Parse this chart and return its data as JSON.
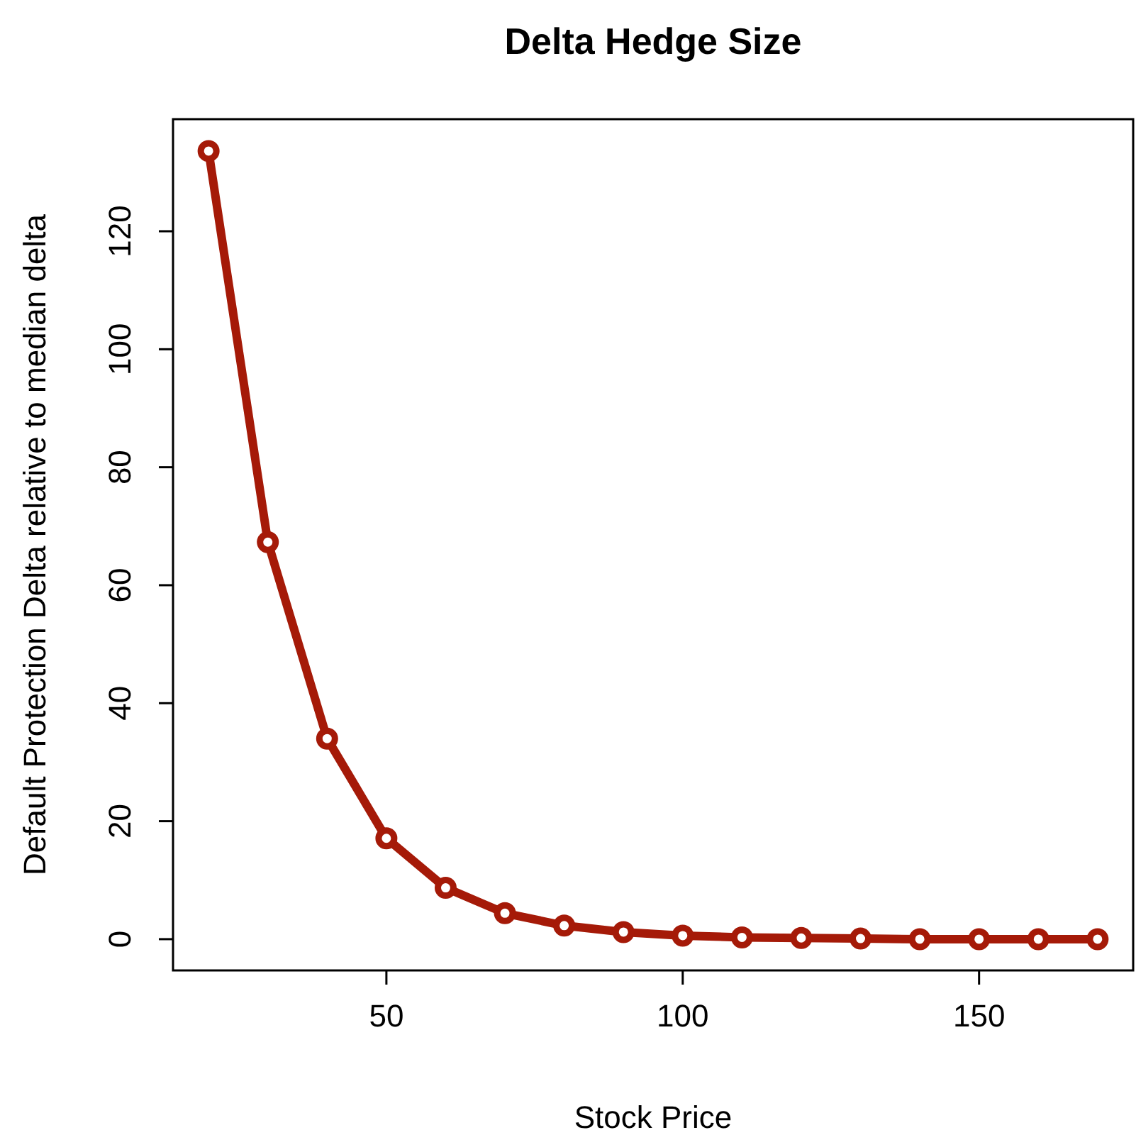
{
  "chart_data": {
    "type": "line",
    "title": "Delta Hedge Size",
    "xlabel": "Stock Price",
    "ylabel": "Default Protection Delta relative to median delta",
    "x": [
      20,
      30,
      40,
      50,
      60,
      70,
      80,
      90,
      100,
      110,
      120,
      130,
      140,
      150,
      160,
      170
    ],
    "series": [
      {
        "color": "#a51a08",
        "values": [
          133.6,
          67.3,
          34,
          17.1,
          8.7,
          4.4,
          2.3,
          1.2,
          0.6,
          0.3,
          0.2,
          0.1,
          0,
          0,
          0,
          0
        ]
      }
    ],
    "xlim": [
      14,
      176
    ],
    "ylim": [
      -5.3,
      139
    ],
    "xticks": [
      50,
      100,
      150
    ],
    "yticks": [
      0,
      20,
      40,
      60,
      80,
      100,
      120
    ],
    "grid": false,
    "marker": "circle",
    "line_style": "solid"
  }
}
